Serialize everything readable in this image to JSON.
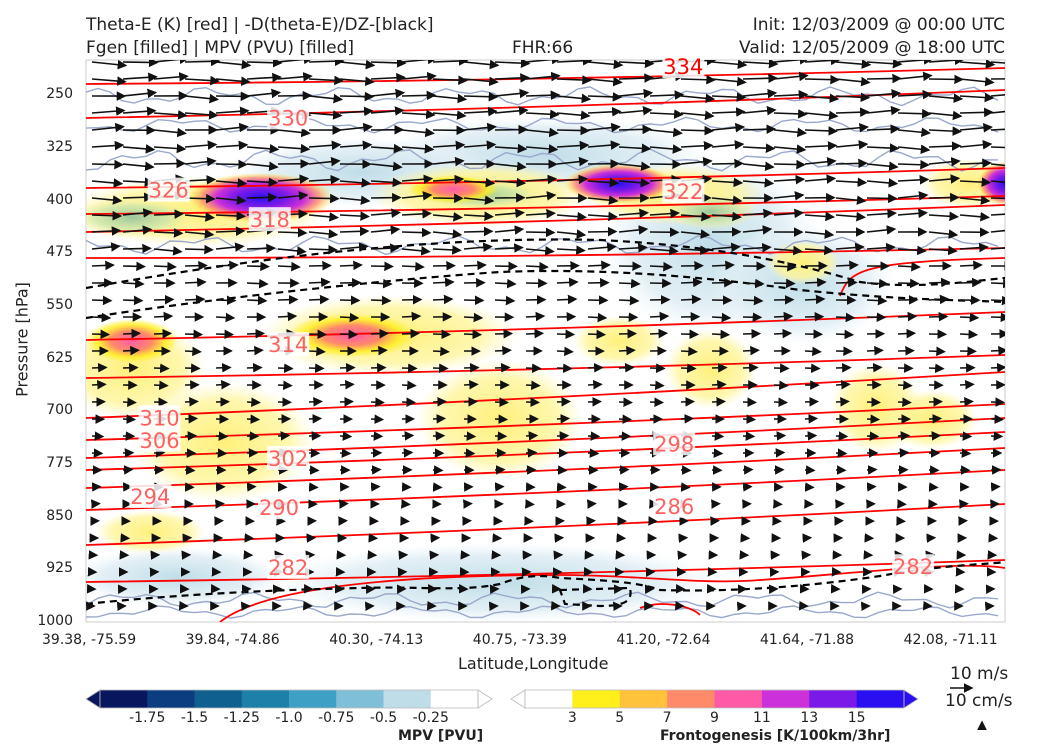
{
  "header": {
    "line1_left": "Theta-E (K) [red] | -D(theta-E)/DZ-[black]",
    "line2_left": "Fgen [filled] | MPV (PVU) [filled]",
    "fhr": "FHR:66",
    "init": "Init: 12/03/2009 @ 00:00 UTC",
    "valid": "Valid: 12/05/2009 @ 18:00 UTC"
  },
  "colors": {
    "theta_e": "#ff0000",
    "theta_e_label": "#ff6060",
    "stability": "#000000",
    "mpv_outline": "#9aa8cc",
    "vectors": "#111111"
  },
  "chart_data": {
    "type": "cross-section",
    "ylabel": "Pressure [hPa]",
    "xlabel": "Latitude,Longitude",
    "ylim": [
      1000,
      200
    ],
    "yticks": [
      "250",
      "325",
      "400",
      "475",
      "550",
      "625",
      "700",
      "775",
      "850",
      "925",
      "1000"
    ],
    "yvalues": [
      250,
      325,
      400,
      475,
      550,
      625,
      700,
      775,
      850,
      925,
      1000
    ],
    "xticks": [
      "39.38, -75.59",
      "39.84, -74.86",
      "40.30, -74.13",
      "40.75, -73.39",
      "41.20, -72.64",
      "41.64, -71.88",
      "42.08, -71.11"
    ],
    "theta_e_labels": [
      {
        "value": "334",
        "at": 0.65,
        "p": 210
      },
      {
        "value": "330",
        "at": 0.22,
        "p": 283
      },
      {
        "value": "326",
        "at": 0.09,
        "p": 386
      },
      {
        "value": "322",
        "at": 0.65,
        "p": 388
      },
      {
        "value": "318",
        "at": 0.2,
        "p": 428
      },
      {
        "value": "314",
        "at": 0.22,
        "p": 606
      },
      {
        "value": "310",
        "at": 0.08,
        "p": 710
      },
      {
        "value": "306",
        "at": 0.08,
        "p": 742
      },
      {
        "value": "302",
        "at": 0.22,
        "p": 768
      },
      {
        "value": "298",
        "at": 0.64,
        "p": 747
      },
      {
        "value": "294",
        "at": 0.07,
        "p": 822
      },
      {
        "value": "290",
        "at": 0.21,
        "p": 838
      },
      {
        "value": "286",
        "at": 0.64,
        "p": 836
      },
      {
        "value": "282",
        "at": 0.22,
        "p": 923
      },
      {
        "value": "282",
        "at": 0.9,
        "p": 922
      }
    ],
    "mpv_colorbar": {
      "title": "MPV [PVU]",
      "ticks": [
        "-1.75",
        "-1.5",
        "-1.25",
        "-1.0",
        "-0.75",
        "-0.5",
        "-0.25"
      ],
      "colors": [
        "#08165e",
        "#0c3d80",
        "#10608f",
        "#1c80a8",
        "#3ea0c4",
        "#80bfd8",
        "#bfdde8",
        "#ffffff"
      ]
    },
    "fgen_colorbar": {
      "title": "Frontogenesis [K/100km/3hr]",
      "ticks": [
        "3",
        "5",
        "7",
        "9",
        "11",
        "13",
        "15"
      ],
      "colors": [
        "#ffffff",
        "#ffef1a",
        "#ffc23a",
        "#ff8a6a",
        "#ff5aa8",
        "#cc30d8",
        "#7a1ae8",
        "#2a10f0"
      ]
    },
    "ref_vectors": [
      "10 m/s",
      "10 cm/s"
    ]
  }
}
